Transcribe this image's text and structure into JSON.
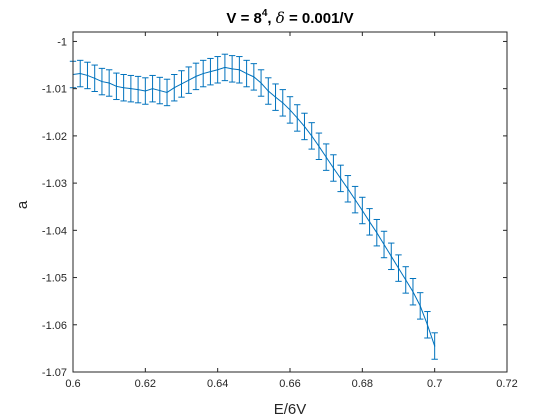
{
  "chart_data": {
    "type": "line",
    "title": {
      "part1": "V = 8",
      "sup": "4",
      "part2": ", ",
      "symbol": "δ",
      "part3": " = 0.001/V"
    },
    "xlabel": "E/6V",
    "ylabel": "a",
    "xlim": [
      0.6,
      0.72
    ],
    "ylim": [
      -1.07,
      -0.998
    ],
    "xticks": [
      0.6,
      0.62,
      0.64,
      0.66,
      0.68,
      0.7,
      0.72
    ],
    "xtick_labels": [
      "0.6",
      "0.62",
      "0.64",
      "0.66",
      "0.68",
      "0.7",
      "0.72"
    ],
    "yticks": [
      -1,
      -1.01,
      -1.02,
      -1.03,
      -1.04,
      -1.05,
      -1.06,
      -1.07
    ],
    "ytick_labels": [
      "-1",
      "-1.01",
      "-1.02",
      "-1.03",
      "-1.04",
      "-1.05",
      "-1.06",
      "-1.07"
    ],
    "grid": false,
    "box": true,
    "series": [
      {
        "color": "#0072BD",
        "error_bars": true,
        "x": [
          0.6,
          0.602,
          0.604,
          0.606,
          0.608,
          0.61,
          0.612,
          0.614,
          0.616,
          0.618,
          0.62,
          0.622,
          0.624,
          0.626,
          0.628,
          0.63,
          0.632,
          0.634,
          0.636,
          0.638,
          0.64,
          0.642,
          0.644,
          0.646,
          0.648,
          0.65,
          0.652,
          0.654,
          0.656,
          0.658,
          0.66,
          0.662,
          0.664,
          0.666,
          0.668,
          0.67,
          0.672,
          0.674,
          0.676,
          0.678,
          0.68,
          0.682,
          0.684,
          0.686,
          0.688,
          0.69,
          0.692,
          0.694,
          0.696,
          0.698,
          0.7
        ],
        "y": [
          -1.007,
          -1.0068,
          -1.0072,
          -1.0078,
          -1.0085,
          -1.0088,
          -1.0095,
          -1.0098,
          -1.01,
          -1.0102,
          -1.0105,
          -1.01,
          -1.0104,
          -1.0108,
          -1.0098,
          -1.009,
          -1.0082,
          -1.0074,
          -1.0068,
          -1.0064,
          -1.006,
          -1.0055,
          -1.0058,
          -1.006,
          -1.0068,
          -1.0075,
          -1.0088,
          -1.0105,
          -1.0118,
          -1.013,
          -1.0145,
          -1.0162,
          -1.018,
          -1.02,
          -1.0222,
          -1.0245,
          -1.0268,
          -1.029,
          -1.0312,
          -1.0335,
          -1.0358,
          -1.0382,
          -1.0405,
          -1.043,
          -1.0455,
          -1.048,
          -1.0505,
          -1.053,
          -1.056,
          -1.06,
          -1.0645
        ],
        "err": [
          0.0028,
          0.0028,
          0.0028,
          0.0028,
          0.0028,
          0.0028,
          0.0028,
          0.0028,
          0.0028,
          0.0028,
          0.0028,
          0.0028,
          0.0028,
          0.0028,
          0.0028,
          0.0028,
          0.0028,
          0.0028,
          0.0028,
          0.0028,
          0.0028,
          0.0028,
          0.0028,
          0.0028,
          0.0028,
          0.0028,
          0.0028,
          0.0028,
          0.0028,
          0.0028,
          0.0028,
          0.0028,
          0.0028,
          0.0028,
          0.0028,
          0.0028,
          0.0028,
          0.0028,
          0.0028,
          0.0028,
          0.0028,
          0.0028,
          0.0028,
          0.0028,
          0.0028,
          0.0028,
          0.0028,
          0.0028,
          0.0028,
          0.0028,
          0.0028
        ]
      }
    ]
  }
}
